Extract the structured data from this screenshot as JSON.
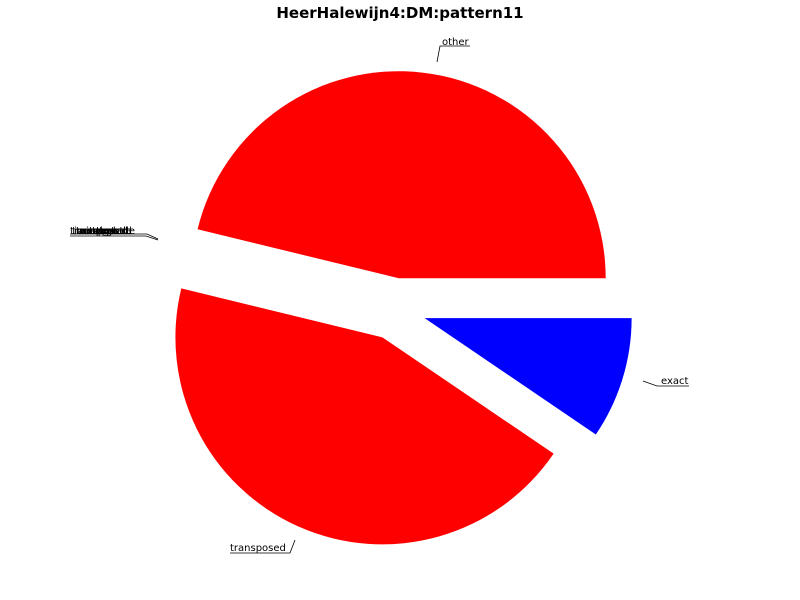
{
  "chart_data": {
    "type": "pie",
    "title": "HeerHalewijn4:DM:pattern11",
    "slices": [
      {
        "label": "exact",
        "value": 9.5,
        "color": "#0000ff",
        "exploded": true
      },
      {
        "label": "transposed",
        "value": 44.3,
        "color": "#ff0000",
        "exploded": true
      },
      {
        "label": "other",
        "value": 46.2,
        "color": "#ff0000",
        "exploded": true
      }
    ],
    "overlapping_labels": [
      "transposed",
      "inverted",
      "retrograde",
      "retrograde",
      "inverted",
      "other",
      "transposed",
      "exact",
      "transposed"
    ],
    "start_angle_deg": 0,
    "direction": "clockwise",
    "legend": "none"
  }
}
